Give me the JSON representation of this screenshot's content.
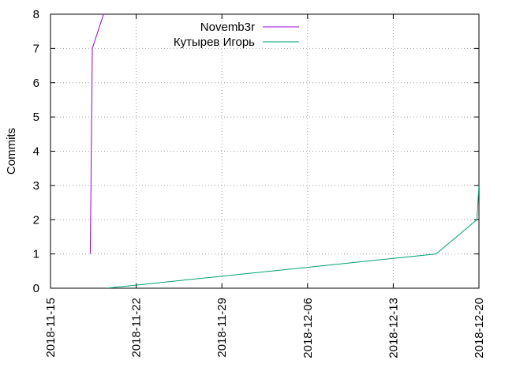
{
  "chart_data": {
    "type": "line",
    "title": "",
    "xlabel": "",
    "ylabel": "Commits",
    "xlim": [
      "2018-11-15",
      "2018-12-20"
    ],
    "ylim": [
      0,
      8
    ],
    "x_ticks": [
      "2018-11-15",
      "2018-11-22",
      "2018-11-29",
      "2018-12-06",
      "2018-12-13",
      "2018-12-20"
    ],
    "y_ticks": [
      "0",
      "1",
      "2",
      "3",
      "4",
      "5",
      "6",
      "7",
      "8"
    ],
    "grid": true,
    "legend_position": "top-center",
    "series": [
      {
        "name": "Novemb3r",
        "color": "#9400d3",
        "points": [
          {
            "x": "2018-11-18 06:00",
            "y": 1
          },
          {
            "x": "2018-11-18 10:00",
            "y": 7
          },
          {
            "x": "2018-11-19 08:00",
            "y": 8
          }
        ]
      },
      {
        "name": "Кутырев Игорь",
        "color": "#009e73",
        "points": [
          {
            "x": "2018-11-19 14:00",
            "y": 0
          },
          {
            "x": "2018-12-16 12:00",
            "y": 1
          },
          {
            "x": "2018-12-19 20:00",
            "y": 2
          },
          {
            "x": "2018-12-20 00:00",
            "y": 3
          }
        ]
      }
    ]
  }
}
